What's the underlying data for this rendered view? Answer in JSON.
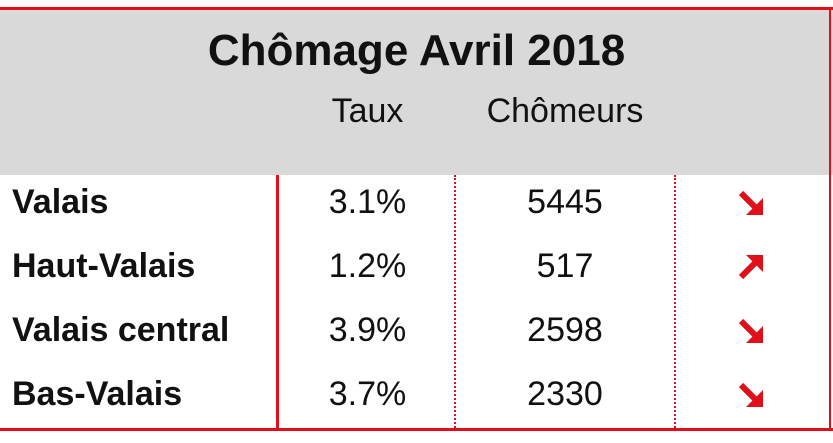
{
  "title": "Chômage Avril 2018",
  "columns": {
    "rate": "Taux",
    "count": "Chômeurs"
  },
  "rows": [
    {
      "region": "Valais",
      "rate": "3.1%",
      "count": "5445",
      "trend": "arrow-down-right-icon"
    },
    {
      "region": "Haut-Valais",
      "rate": "1.2%",
      "count": "517",
      "trend": "arrow-up-right-icon"
    },
    {
      "region": "Valais central",
      "rate": "3.9%",
      "count": "2598",
      "trend": "arrow-down-right-icon"
    },
    {
      "region": "Bas-Valais",
      "rate": "3.7%",
      "count": "2330",
      "trend": "arrow-down-right-icon"
    }
  ],
  "colors": {
    "accent": "#e0101a",
    "header_bg": "#d9d9d9"
  }
}
